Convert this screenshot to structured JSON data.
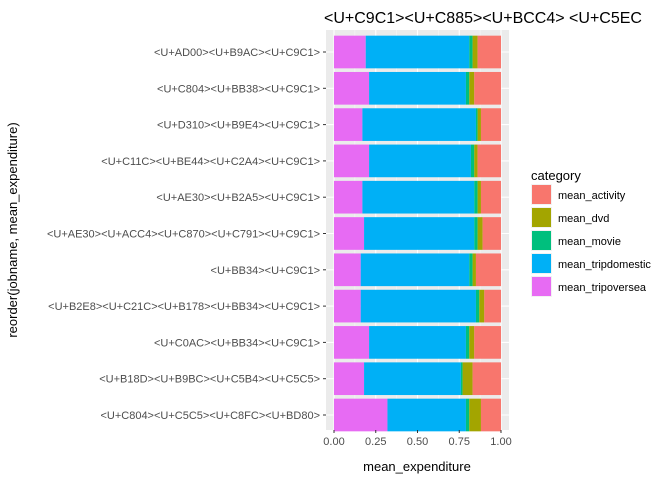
{
  "chart_data": {
    "type": "bar",
    "orientation": "horizontal",
    "stacked": true,
    "title": "<U+C9C1><U+C885><U+BCC4> <U+C5EC",
    "xlabel": "mean_expenditure",
    "ylabel": "reorder(jobname, mean_expenditure)",
    "xlim": [
      0,
      1
    ],
    "xticks": [
      "0.00",
      "0.25",
      "0.50",
      "0.75",
      "1.00"
    ],
    "grid": true,
    "legend_position": "right",
    "legend_title": "category",
    "categories": [
      "<U+AD00><U+B9AC><U+C9C1>",
      "<U+C804><U+BB38><U+C9C1>",
      "<U+D310><U+B9E4><U+C9C1>",
      "<U+C11C><U+BE44><U+C2A4><U+C9C1>",
      "<U+AE30><U+B2A5><U+C9C1>",
      "<U+AE30><U+ACC4><U+C870><U+C791><U+C9C1>",
      "<U+BB34><U+C9C1>",
      "<U+B2E8><U+C21C><U+B178><U+BB34><U+C9C1>",
      "<U+C0AC><U+BB34><U+C9C1>",
      "<U+B18D><U+B9BC><U+C5B4><U+C5C5>",
      "<U+C804><U+C5C5><U+C8FC><U+BD80>"
    ],
    "series": [
      {
        "name": "mean_tripoversea",
        "color": "#E76BF3",
        "values": [
          0.19,
          0.21,
          0.17,
          0.21,
          0.17,
          0.18,
          0.16,
          0.16,
          0.21,
          0.18,
          0.32
        ]
      },
      {
        "name": "mean_tripdomestic",
        "color": "#00B0F6",
        "values": [
          0.62,
          0.58,
          0.68,
          0.61,
          0.67,
          0.66,
          0.65,
          0.69,
          0.58,
          0.58,
          0.47
        ]
      },
      {
        "name": "mean_movie",
        "color": "#00BF7D",
        "values": [
          0.02,
          0.02,
          0.01,
          0.02,
          0.02,
          0.02,
          0.02,
          0.02,
          0.02,
          0.01,
          0.02
        ]
      },
      {
        "name": "mean_dvd",
        "color": "#A3A500",
        "values": [
          0.03,
          0.03,
          0.02,
          0.02,
          0.02,
          0.03,
          0.02,
          0.03,
          0.03,
          0.06,
          0.07
        ]
      },
      {
        "name": "mean_activity",
        "color": "#F8766D",
        "values": [
          0.14,
          0.16,
          0.12,
          0.14,
          0.12,
          0.11,
          0.15,
          0.1,
          0.16,
          0.17,
          0.12
        ]
      }
    ],
    "legend_order": [
      "mean_activity",
      "mean_dvd",
      "mean_movie",
      "mean_tripdomestic",
      "mean_tripoversea"
    ]
  }
}
